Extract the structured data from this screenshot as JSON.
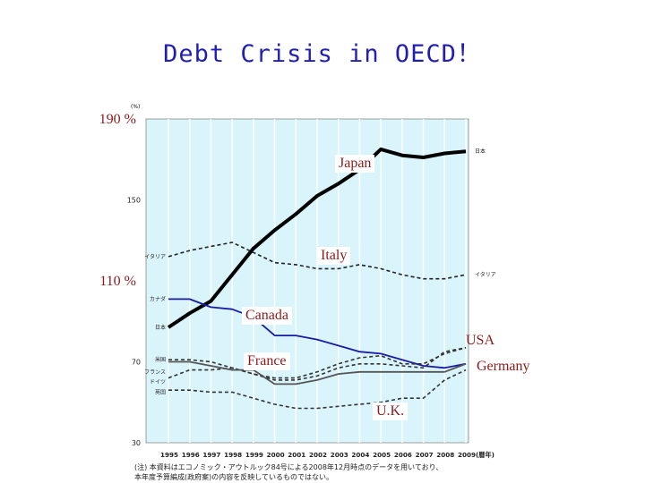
{
  "title": "Debt Crisis in OECD！",
  "chart_data": {
    "type": "line",
    "ylabel": "(%)",
    "ylim": [
      30,
      190
    ],
    "yticks": [
      30,
      70,
      110,
      150,
      190
    ],
    "ytick_labels": [
      "30",
      "70",
      "110 %",
      "150",
      "190 %"
    ],
    "x": [
      "1995",
      "1996",
      "1997",
      "1998",
      "1999",
      "2000",
      "2001",
      "2002",
      "2003",
      "2004",
      "2005",
      "2006",
      "2007",
      "2008",
      "2009(暦年)"
    ],
    "grid": true,
    "series": [
      {
        "name": "日本",
        "style": "solid",
        "color": "#000000",
        "values": [
          87,
          94,
          100,
          113,
          126,
          135,
          143,
          152,
          158,
          165,
          175,
          172,
          171,
          173,
          174
        ]
      },
      {
        "name": "イタリア",
        "style": "dashed",
        "color": "#222222",
        "values": [
          122,
          125,
          127,
          129,
          124,
          119,
          118,
          116,
          116,
          118,
          116,
          113,
          111,
          111,
          113
        ]
      },
      {
        "name": "カナダ",
        "style": "solid",
        "color": "#1a1aaa",
        "values": [
          101,
          101,
          97,
          96,
          92,
          83,
          83,
          81,
          78,
          75,
          74,
          71,
          68,
          67,
          69
        ]
      },
      {
        "name": "米国",
        "style": "dashed",
        "color": "#333333",
        "values": [
          71,
          71,
          70,
          67,
          64,
          61,
          61,
          63,
          67,
          69,
          69,
          68,
          67,
          75,
          77
        ]
      },
      {
        "name": "フランス",
        "style": "dashed",
        "color": "#333333",
        "values": [
          62,
          66,
          66,
          67,
          64,
          62,
          62,
          65,
          69,
          72,
          73,
          69,
          69,
          74,
          77
        ]
      },
      {
        "name": "ドイツ",
        "style": "solid",
        "color": "#555555",
        "values": [
          70,
          70,
          68,
          66,
          66,
          59,
          59,
          61,
          64,
          65,
          65,
          65,
          65,
          65,
          69
        ]
      },
      {
        "name": "英国",
        "style": "dashed",
        "color": "#333333",
        "values": [
          56,
          56,
          55,
          55,
          52,
          49,
          47,
          47,
          48,
          49,
          50,
          52,
          52,
          61,
          66
        ]
      }
    ],
    "left_labels": [
      {
        "text": "イタリア",
        "y": 122
      },
      {
        "text": "カナダ",
        "y": 101
      },
      {
        "text": "日本",
        "y": 87
      },
      {
        "text": "米国",
        "y": 71
      },
      {
        "text": "フランス",
        "y": 65
      },
      {
        "text": "ドイツ",
        "y": 60
      },
      {
        "text": "英国",
        "y": 55
      }
    ],
    "right_labels": [
      {
        "text": "日本",
        "y": 174
      },
      {
        "text": "イタリア",
        "y": 113
      }
    ],
    "annotations": {
      "japan": "Japan",
      "italy": "Italy",
      "canada": "Canada",
      "france": "France",
      "usa": "USA",
      "germany": "Germany",
      "uk": "U.K."
    }
  },
  "footnote": {
    "line1": "(注) 本資料はエコノミック・アウトルック84号による2008年12月時点のデータを用いており、",
    "line2": "本年度予算編成(政府案)の内容を反映しているものではない。"
  }
}
